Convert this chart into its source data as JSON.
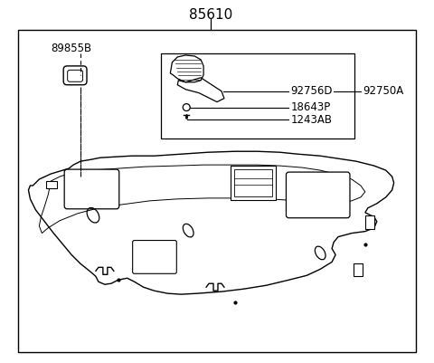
{
  "title": "85610",
  "bg_color": "#ffffff",
  "line_color": "#000000",
  "text_color": "#000000",
  "font_size_title": 11,
  "font_size_labels": 8.5,
  "labels": {
    "main": "85610",
    "part1": "89855B",
    "part2": "92756D",
    "part3": "92750A",
    "part4": "18643P",
    "part5": "1243AB"
  },
  "figsize": [
    4.8,
    4.01
  ],
  "dpi": 100
}
